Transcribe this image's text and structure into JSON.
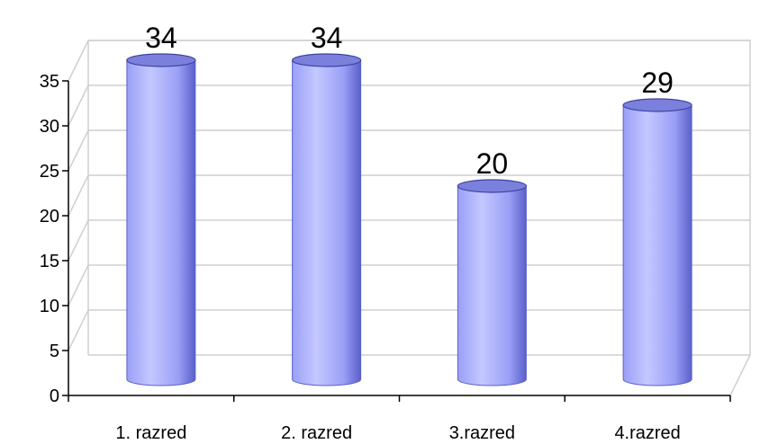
{
  "chart_data": {
    "type": "bar",
    "style": "3d-cylinder",
    "categories": [
      "1. razred",
      "2. razred",
      "3.razred",
      "4.razred"
    ],
    "values": [
      34,
      34,
      20,
      29
    ],
    "data_labels": [
      "34",
      "34",
      "20",
      "29"
    ],
    "y_ticks": [
      "0",
      "5",
      "10",
      "15",
      "20",
      "25",
      "30",
      "35"
    ],
    "ylim": [
      0,
      35
    ],
    "grid": true,
    "title": "",
    "xlabel": "",
    "ylabel": "",
    "colors": {
      "bar_light": "#c4c8ff",
      "bar_mid": "#9a9ff6",
      "bar_dark": "#5a60c8",
      "bar_top": "#7b80dd",
      "grid": "#cfcfcf",
      "axis": "#000000"
    }
  }
}
